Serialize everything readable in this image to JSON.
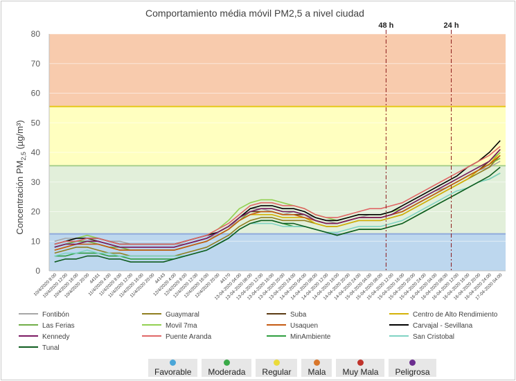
{
  "chart_data": {
    "type": "line",
    "title": "Comportamiento média móvil PM2,5 a nivel ciudad",
    "ylabel_main": "Concentración PM",
    "ylabel_sub": "2,5",
    "ylabel_unit": " (µg/m³)",
    "ylim": [
      0,
      80
    ],
    "yticks": [
      0,
      10,
      20,
      30,
      40,
      50,
      60,
      70,
      80
    ],
    "bands": [
      {
        "name": "Favorable",
        "from": 0,
        "to": 12.5,
        "color": "#bdd7ee"
      },
      {
        "name": "Moderada",
        "from": 12.5,
        "to": 35.5,
        "color": "#e2efda"
      },
      {
        "name": "Regular",
        "from": 35.5,
        "to": 55.5,
        "color": "#ffffc0"
      },
      {
        "name": "Mala",
        "from": 55.5,
        "to": 80,
        "color": "#f8cbad"
      }
    ],
    "band_lines": [
      {
        "value": 12.5,
        "color": "#8faadc"
      },
      {
        "value": 35.5,
        "color": "#a9d08e"
      },
      {
        "value": 55.5,
        "color": "#e6c71a"
      }
    ],
    "xticks": [
      "10/4/2020 8:00",
      "10/4/2020 12:00",
      "10/4/2020 16:00",
      "10/4/2020 20:00",
      "44161",
      "11/4/2020 4:00",
      "11/4/2020 8:00",
      "11/4/2020 12:00",
      "11/4/2020 16:00",
      "11/4/2020 20:00",
      "44143",
      "12/4/2020 4:00",
      "12/4/2020 8:00",
      "12/4/2020 12:00",
      "12/4/2020 16:00",
      "12/4/2020 20:00",
      "44170",
      "13-04-2020 04:00",
      "13-04-2020 08:00",
      "13-04-2020 12:00",
      "13-04-2020 16:00",
      "13-04-2020 20:00",
      "13-04-2020 24:00",
      "14-04-2020 04:00",
      "14-04-2020 08:00",
      "14-04-2020 12:00",
      "14-04-2020 16:00",
      "14-04-2020 20:00",
      "14-04-2020 24:00",
      "15-04-2020 04:00",
      "15-04-2020 08:00",
      "15-04-2020 12:00",
      "15-04-2020 16:00",
      "15-04-2020 20:00",
      "15-04-2020 24:00",
      "16-04-2020 04:00",
      "16-04-2020 08:00",
      "16-04-2020 12:00",
      "16-04-2020 16:00",
      "16-04-2020 20:00",
      "16-04-2020 24:00",
      "17-04-2020 04:00"
    ],
    "markers": [
      {
        "label": "48 h",
        "x_index": 30.5,
        "color": "#8b1a1a"
      },
      {
        "label": "24 h",
        "x_index": 36.5,
        "color": "#8b1a1a"
      }
    ],
    "series": [
      {
        "name": "Fontibón",
        "color": "#a6a6a6",
        "values": [
          10,
          11,
          11,
          12,
          11,
          10,
          10,
          9,
          9,
          9,
          9,
          9,
          9,
          10,
          11,
          12,
          14,
          18,
          21,
          21,
          20,
          19,
          20,
          19,
          18,
          17,
          16,
          17,
          18,
          19,
          19,
          20,
          21,
          23,
          25,
          27,
          28,
          30,
          32,
          34,
          35,
          37
        ]
      },
      {
        "name": "Guaymaral",
        "color": "#8f7e1e",
        "values": [
          6,
          7,
          8,
          8,
          7,
          6,
          6,
          5,
          5,
          5,
          5,
          5,
          6,
          7,
          8,
          10,
          12,
          15,
          17,
          18,
          18,
          17,
          17,
          17,
          16,
          15,
          15,
          16,
          17,
          17,
          17,
          18,
          19,
          21,
          23,
          25,
          27,
          29,
          31,
          33,
          35,
          39
        ]
      },
      {
        "name": "Suba",
        "color": "#5a3a12",
        "values": [
          8,
          9,
          10,
          11,
          10,
          9,
          8,
          8,
          8,
          8,
          8,
          8,
          9,
          10,
          11,
          13,
          15,
          18,
          20,
          20,
          20,
          19,
          19,
          19,
          17,
          16,
          16,
          17,
          18,
          18,
          18,
          19,
          20,
          22,
          24,
          26,
          28,
          30,
          32,
          34,
          37,
          41
        ]
      },
      {
        "name": "Centro de Alto Rendimiento",
        "color": "#d4b106",
        "values": [
          7,
          8,
          9,
          10,
          9,
          8,
          7,
          7,
          7,
          7,
          7,
          7,
          8,
          9,
          10,
          12,
          14,
          17,
          19,
          19,
          19,
          18,
          18,
          18,
          16,
          15,
          15,
          16,
          17,
          17,
          17,
          18,
          19,
          21,
          23,
          25,
          27,
          29,
          31,
          34,
          36,
          40
        ]
      },
      {
        "name": "Las Ferias",
        "color": "#70ad47",
        "values": [
          8,
          9,
          10,
          10,
          9,
          8,
          8,
          7,
          7,
          7,
          7,
          7,
          8,
          9,
          10,
          12,
          14,
          17,
          20,
          21,
          21,
          20,
          20,
          19,
          17,
          16,
          16,
          17,
          18,
          18,
          18,
          19,
          20,
          22,
          24,
          26,
          28,
          30,
          32,
          34,
          36,
          38
        ]
      },
      {
        "name": "Movil 7ma",
        "color": "#92d050",
        "values": [
          9,
          10,
          11,
          12,
          11,
          10,
          9,
          9,
          9,
          9,
          9,
          9,
          10,
          11,
          12,
          14,
          17,
          21,
          23,
          24,
          24,
          23,
          22,
          21,
          19,
          18,
          17,
          18,
          19,
          19,
          19,
          20,
          21,
          23,
          25,
          27,
          29,
          31,
          33,
          35,
          37,
          40
        ]
      },
      {
        "name": "Usaquen",
        "color": "#c55a11",
        "values": [
          7,
          8,
          9,
          9,
          9,
          8,
          7,
          7,
          7,
          7,
          7,
          7,
          8,
          9,
          10,
          12,
          14,
          17,
          19,
          20,
          20,
          19,
          19,
          18,
          17,
          16,
          16,
          17,
          18,
          18,
          18,
          19,
          20,
          22,
          24,
          26,
          28,
          30,
          32,
          34,
          36,
          39
        ]
      },
      {
        "name": "Carvajal - Sevillana",
        "color": "#000000",
        "values": [
          9,
          10,
          11,
          11,
          11,
          10,
          9,
          9,
          9,
          9,
          9,
          9,
          10,
          11,
          12,
          13,
          15,
          18,
          21,
          22,
          22,
          21,
          21,
          20,
          18,
          17,
          17,
          18,
          19,
          19,
          19,
          20,
          22,
          24,
          26,
          28,
          30,
          32,
          35,
          37,
          40,
          44
        ]
      },
      {
        "name": "Kennedy",
        "color": "#7b1a63",
        "values": [
          8,
          9,
          9,
          10,
          10,
          9,
          8,
          8,
          8,
          8,
          8,
          8,
          9,
          10,
          11,
          13,
          15,
          18,
          20,
          21,
          21,
          20,
          20,
          19,
          17,
          16,
          16,
          17,
          18,
          18,
          18,
          19,
          21,
          23,
          25,
          27,
          29,
          31,
          33,
          35,
          37,
          41
        ]
      },
      {
        "name": "Puente Aranda",
        "color": "#e06666",
        "values": [
          9,
          10,
          10,
          11,
          11,
          10,
          9,
          9,
          9,
          9,
          9,
          9,
          10,
          11,
          12,
          14,
          16,
          19,
          22,
          23,
          23,
          22,
          22,
          21,
          19,
          18,
          18,
          19,
          20,
          21,
          21,
          22,
          23,
          25,
          27,
          29,
          31,
          33,
          35,
          37,
          39,
          42
        ]
      },
      {
        "name": "MinAmbiente",
        "color": "#2e9e3f",
        "values": [
          5,
          5,
          6,
          6,
          6,
          5,
          5,
          4,
          4,
          4,
          4,
          4,
          5,
          6,
          7,
          9,
          11,
          14,
          16,
          17,
          17,
          16,
          15,
          15,
          14,
          13,
          12,
          13,
          14,
          14,
          14,
          15,
          16,
          18,
          20,
          22,
          24,
          26,
          28,
          30,
          31,
          33
        ]
      },
      {
        "name": "San Cristobal",
        "color": "#7fd3c3",
        "values": [
          5,
          6,
          6,
          7,
          6,
          6,
          5,
          5,
          5,
          5,
          5,
          5,
          5,
          6,
          7,
          9,
          11,
          14,
          16,
          16,
          16,
          15,
          15,
          15,
          14,
          13,
          13,
          14,
          15,
          15,
          15,
          16,
          17,
          19,
          21,
          23,
          25,
          27,
          28,
          30,
          31,
          33
        ]
      },
      {
        "name": "Tunal",
        "color": "#0f5c1f",
        "values": [
          3,
          4,
          4,
          5,
          5,
          4,
          4,
          3,
          3,
          3,
          3,
          4,
          5,
          6,
          7,
          9,
          11,
          14,
          16,
          17,
          17,
          16,
          16,
          15,
          14,
          13,
          12,
          13,
          14,
          14,
          14,
          15,
          16,
          18,
          20,
          22,
          24,
          26,
          28,
          30,
          32,
          35
        ]
      }
    ]
  },
  "categories": [
    {
      "label": "Favorable",
      "color": "#4aa6d8"
    },
    {
      "label": "Moderada",
      "color": "#3aaa48"
    },
    {
      "label": "Regular",
      "color": "#ebdb3a"
    },
    {
      "label": "Mala",
      "color": "#d9772b"
    },
    {
      "label": "Muy Mala",
      "color": "#c0332b"
    },
    {
      "label": "Peligrosa",
      "color": "#6b2d8f"
    }
  ]
}
